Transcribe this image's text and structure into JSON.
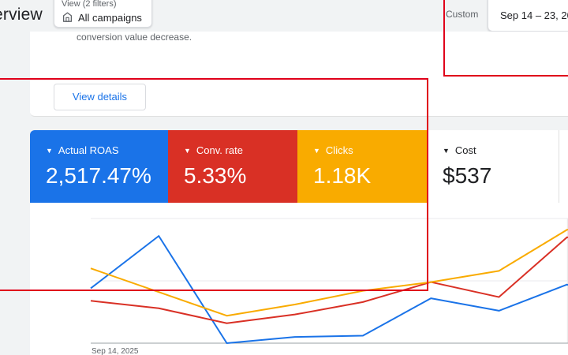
{
  "header": {
    "title": "erview",
    "view_label": "View (2 filters)",
    "view_value": "All campaigns",
    "custom_label": "Custom",
    "date_range": "Sep 14 – 23, 20"
  },
  "insight": {
    "text_fragment": "conversion value decrease.",
    "view_details_label": "View details"
  },
  "metrics": [
    {
      "label": "Actual ROAS",
      "value": "2,517.47%",
      "color": "#1a73e8"
    },
    {
      "label": "Conv. rate",
      "value": "5.33%",
      "color": "#d93025"
    },
    {
      "label": "Clicks",
      "value": "1.18K",
      "color": "#f9ab00"
    },
    {
      "label": "Cost",
      "value": "$537",
      "color": "#ffffff"
    }
  ],
  "chart_data": {
    "type": "line",
    "x_start_label": "Sep 14, 2025",
    "series": [
      {
        "color": "#1a73e8",
        "values": [
          0.44,
          0.86,
          0.0,
          0.05,
          0.06,
          0.36,
          0.26,
          0.47,
          0.31
        ]
      },
      {
        "color": "#d93025",
        "values": [
          0.34,
          0.28,
          0.16,
          0.23,
          0.33,
          0.49,
          0.37,
          0.85,
          0.76
        ]
      },
      {
        "color": "#f9ab00",
        "values": [
          0.6,
          0.41,
          0.22,
          0.31,
          0.42,
          0.49,
          0.58,
          0.91,
          0.96
        ]
      }
    ],
    "highlight_from_index": 7,
    "gridlines": true
  }
}
